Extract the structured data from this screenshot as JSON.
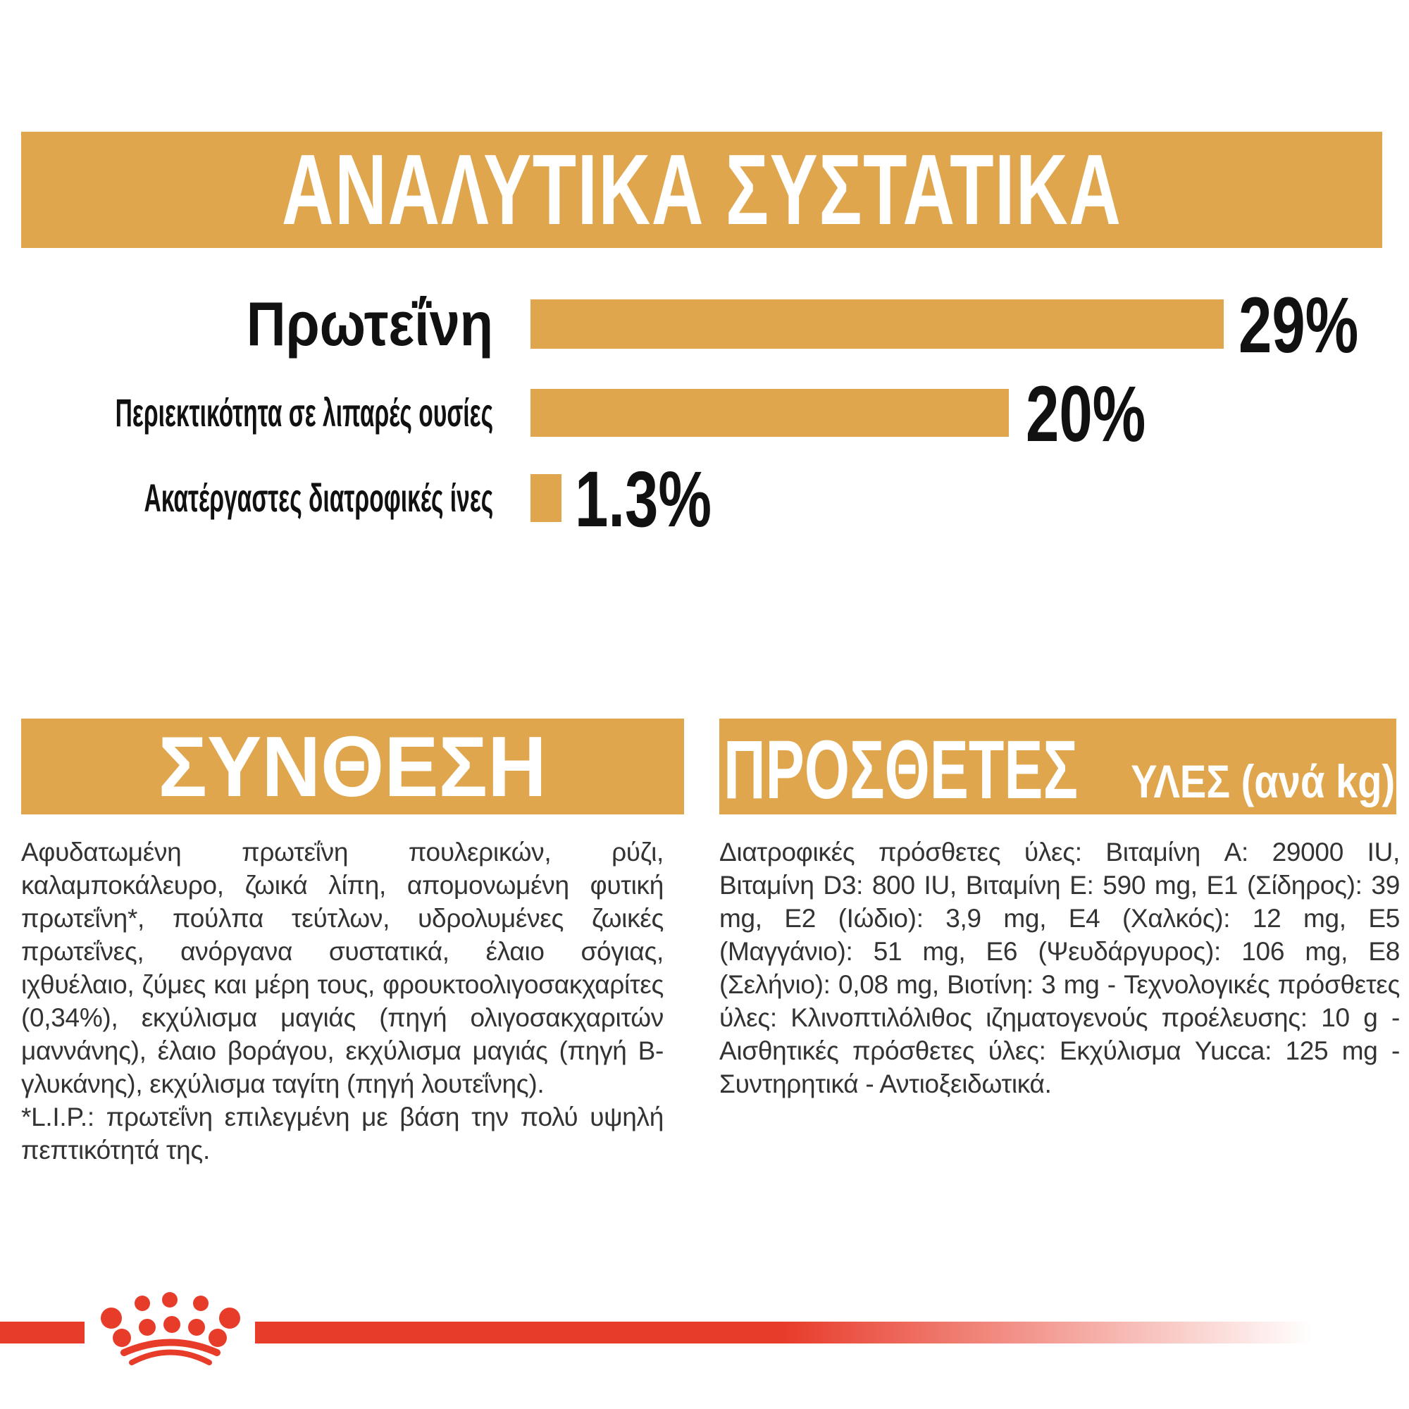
{
  "colors": {
    "gold": "#E0A64E",
    "red": "#E83C2B",
    "white": "#ffffff",
    "chart_text": "#111111",
    "body_text": "#333333"
  },
  "header": {
    "title": "ΑΝΑΛΥΤΙΚΑ ΣΥΣΤΑΤΙΚΑ"
  },
  "chart_data": {
    "type": "bar",
    "orientation": "horizontal",
    "categories": [
      "Πρωτεΐνη",
      "Περιεκτικότητα σε λιπαρές ουσίες",
      "Ακατέργαστες διατροφικές ίνες"
    ],
    "values": [
      29,
      20,
      1.3
    ],
    "value_labels": [
      "29%",
      "20%",
      "1.3%"
    ],
    "unit": "%",
    "xlim": [
      0,
      29
    ],
    "bar_color": "#E0A64E",
    "grid": false,
    "legend": false
  },
  "sections": {
    "composition": {
      "title": "ΣΥΝΘΕΣΗ",
      "body": "Αφυδατωμένη πρωτεΐνη πουλερικών, ρύζι, καλαμποκάλευρο, ζωικά λίπη, απομονωμένη φυτική πρωτεΐνη*, πούλπα τεύτλων, υδρολυμένες ζωικές πρωτεΐνες, ανόργανα συστατικά, έλαιο σόγιας, ιχθυέλαιο, ζύμες και μέρη τους, φρουκτοολιγοσακχαρίτες (0,34%), εκχύλισμα μαγιάς (πηγή ολιγοσακχαριτών μαννάνης), έλαιο βοράγου, εκχύλισμα μαγιάς (πηγή Β-γλυκάνης), εκχύλισμα ταγίτη (πηγή λουτεΐνης).",
      "footnote": "*L.I.P.: πρωτεΐνη επιλεγμένη με βάση την πολύ υψηλή πεπτικότητά της."
    },
    "additives": {
      "title_main": "ΠΡΟΣΘΕΤΕΣ",
      "title_sub": "ΥΛΕΣ (ανά kg)",
      "body": "Διατροφικές πρόσθετες ύλες: Βιταμίνη A: 29000 IU, Βιταμίνη D3: 800 IU, Βιταμίνη E: 590 mg, E1 (Σίδηρος): 39 mg, E2 (Ιώδιο): 3,9 mg, E4 (Χαλκός): 12 mg, E5 (Μαγγάνιο): 51 mg, E6 (Ψευδάργυρος): 106 mg, E8 (Σελήνιο): 0,08 mg, Βιοτίνη: 3 mg - Τεχνολογικές πρόσθετες ύλες: Κλινοπτιλόλιθος ιζηματογενούς προέλευσης: 10 g - Αισθητικές πρόσθετες ύλες: Εκχύλισμα Yucca: 125 mg - Συντηρητικά - Αντιοξειδωτικά."
    }
  },
  "footer": {
    "logo": "royal-canin-crown"
  }
}
